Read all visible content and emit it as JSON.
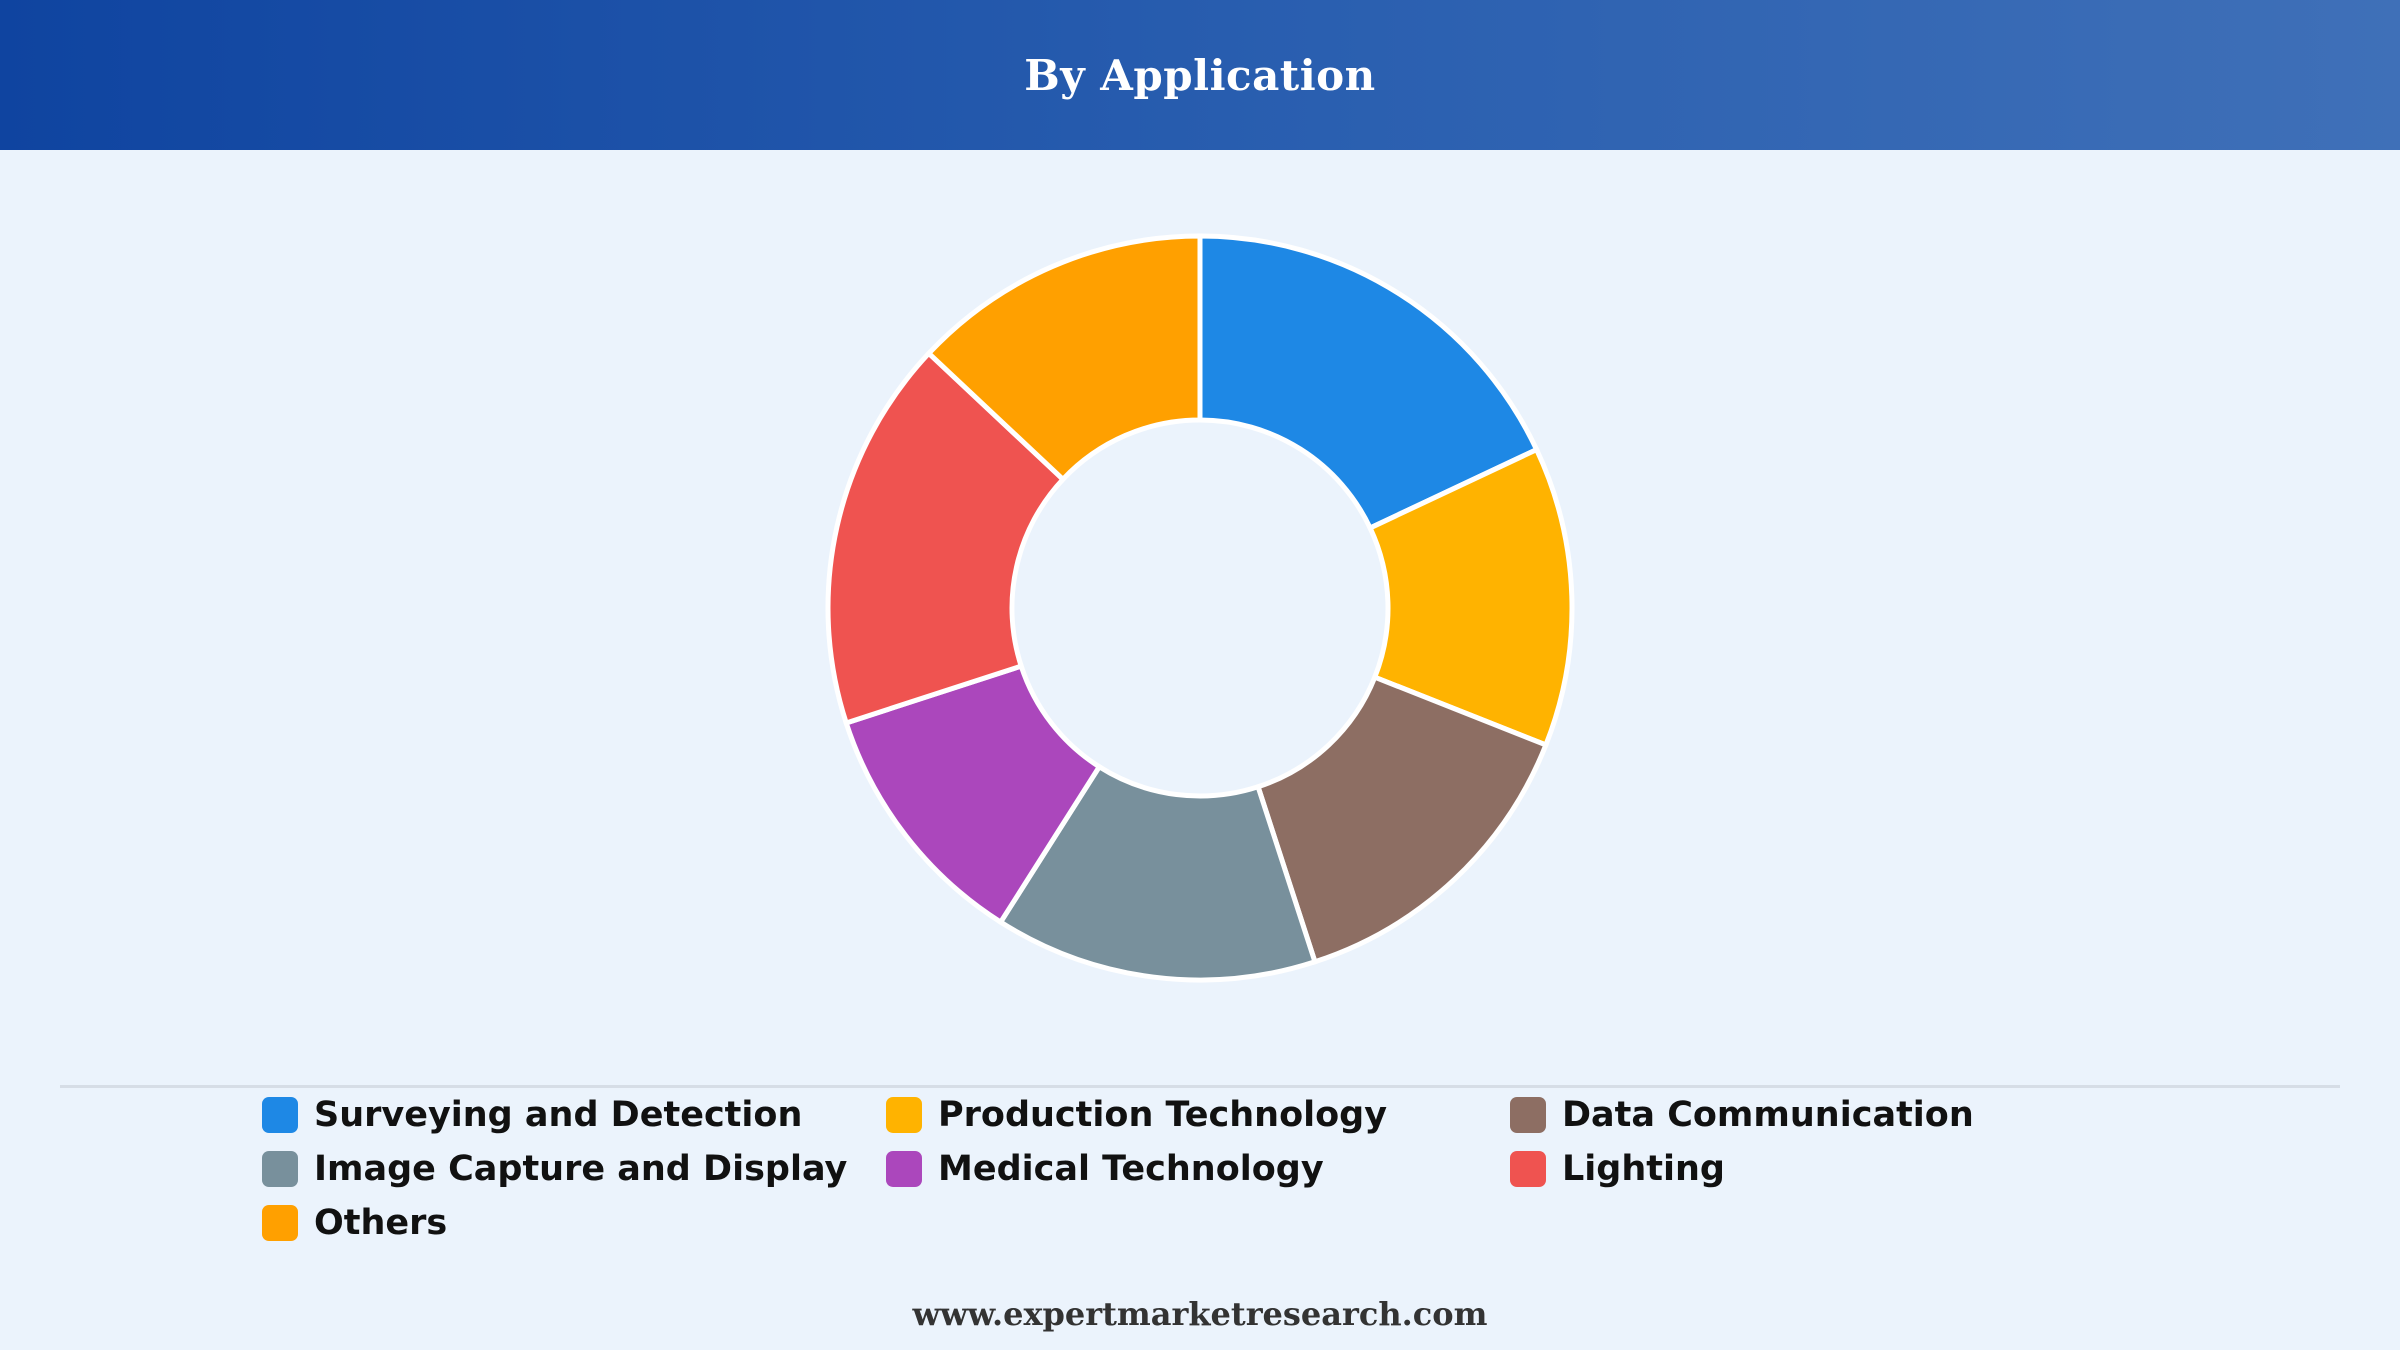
{
  "header": {
    "title": "By Application"
  },
  "footer": {
    "url": "www.expertmarketresearch.com"
  },
  "chart_data": {
    "type": "donut",
    "title": "By Application",
    "legend_position": "bottom",
    "series": [
      {
        "name": "Surveying and Detection",
        "value": 18,
        "color": "#1e88e5"
      },
      {
        "name": "Production Technology",
        "value": 13,
        "color": "#ffb300"
      },
      {
        "name": "Data Communication",
        "value": 14,
        "color": "#8d6e63"
      },
      {
        "name": "Image Capture and Display",
        "value": 14,
        "color": "#78909c"
      },
      {
        "name": "Medical Technology",
        "value": 11,
        "color": "#ab47bc"
      },
      {
        "name": "Lighting",
        "value": 17,
        "color": "#ef5350"
      },
      {
        "name": "Others",
        "value": 13,
        "color": "#ffa000"
      }
    ]
  }
}
